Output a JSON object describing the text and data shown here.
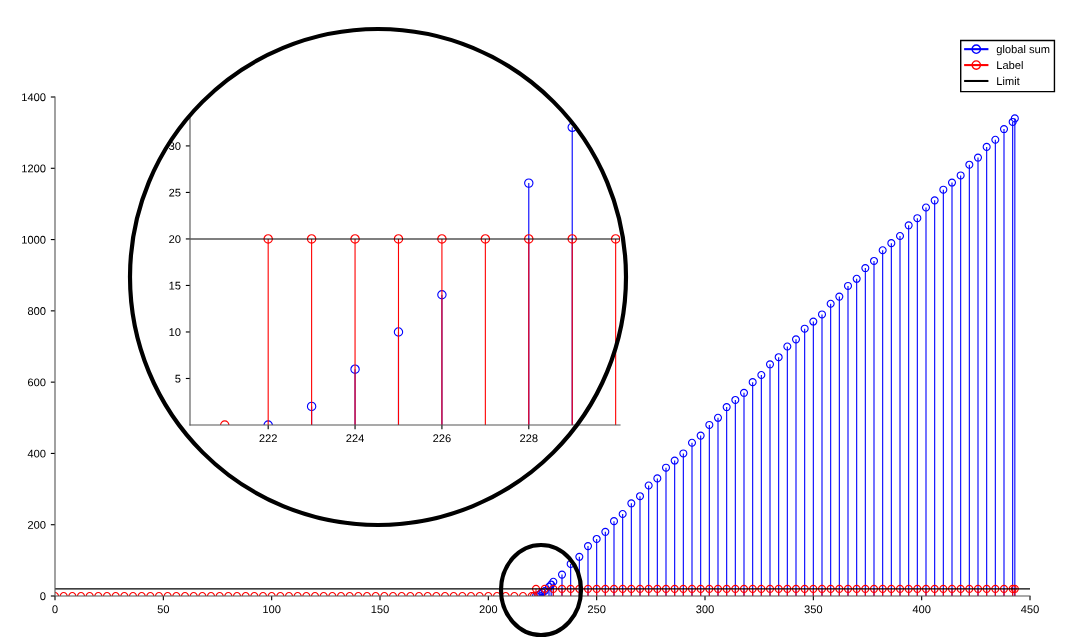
{
  "chart_data": [
    {
      "type": "lollipop",
      "xlim": [
        0,
        450
      ],
      "xticks": [
        0,
        50,
        100,
        150,
        200,
        250,
        300,
        350,
        400,
        450
      ],
      "ylim": [
        0,
        1400
      ],
      "yticks": [
        0,
        200,
        400,
        600,
        800,
        1000,
        1200,
        1400
      ],
      "grid": false,
      "legend": "top right",
      "marker": "circle",
      "series": [
        {
          "name": "global sum",
          "color": "#0000ff",
          "x": [
            222,
            223,
            224,
            225,
            226,
            228,
            229,
            230,
            234,
            238,
            242,
            246,
            250,
            254,
            258,
            262,
            266,
            270,
            274,
            278,
            282,
            286,
            290,
            294,
            298,
            302,
            306,
            310,
            314,
            318,
            322,
            326,
            330,
            334,
            338,
            342,
            346,
            350,
            354,
            358,
            362,
            366,
            370,
            374,
            378,
            382,
            386,
            390,
            394,
            398,
            402,
            406,
            410,
            414,
            418,
            422,
            426,
            430,
            434,
            438,
            442,
            443
          ],
          "values": [
            0,
            2,
            6,
            10,
            14,
            26,
            32,
            40,
            60,
            90,
            110,
            140,
            160,
            180,
            210,
            230,
            260,
            280,
            310,
            330,
            360,
            380,
            400,
            430,
            450,
            480,
            500,
            530,
            550,
            570,
            600,
            620,
            650,
            670,
            700,
            720,
            750,
            770,
            790,
            820,
            840,
            870,
            890,
            920,
            940,
            970,
            990,
            1010,
            1040,
            1060,
            1090,
            1110,
            1140,
            1160,
            1180,
            1210,
            1230,
            1260,
            1280,
            1310,
            1330,
            1340
          ]
        },
        {
          "name": "Label",
          "color": "#ff0000",
          "x": [
            0,
            4,
            8,
            12,
            16,
            20,
            24,
            28,
            32,
            36,
            40,
            44,
            48,
            52,
            56,
            60,
            64,
            68,
            72,
            76,
            80,
            84,
            88,
            92,
            96,
            100,
            104,
            108,
            112,
            116,
            120,
            124,
            128,
            132,
            136,
            140,
            144,
            148,
            152,
            156,
            160,
            164,
            168,
            172,
            176,
            180,
            184,
            188,
            192,
            196,
            200,
            204,
            208,
            212,
            216,
            220,
            221,
            222,
            226,
            230,
            234,
            238,
            242,
            246,
            250,
            254,
            258,
            262,
            266,
            270,
            274,
            278,
            282,
            286,
            290,
            294,
            298,
            302,
            306,
            310,
            314,
            318,
            322,
            326,
            330,
            334,
            338,
            342,
            346,
            350,
            354,
            358,
            362,
            366,
            370,
            374,
            378,
            382,
            386,
            390,
            394,
            398,
            402,
            406,
            410,
            414,
            418,
            422,
            426,
            430,
            434,
            438,
            442,
            443
          ],
          "values": [
            0,
            0,
            0,
            0,
            0,
            0,
            0,
            0,
            0,
            0,
            0,
            0,
            0,
            0,
            0,
            0,
            0,
            0,
            0,
            0,
            0,
            0,
            0,
            0,
            0,
            0,
            0,
            0,
            0,
            0,
            0,
            0,
            0,
            0,
            0,
            0,
            0,
            0,
            0,
            0,
            0,
            0,
            0,
            0,
            0,
            0,
            0,
            0,
            0,
            0,
            0,
            0,
            0,
            0,
            0,
            0,
            0,
            20,
            20,
            20,
            20,
            20,
            20,
            20,
            20,
            20,
            20,
            20,
            20,
            20,
            20,
            20,
            20,
            20,
            20,
            20,
            20,
            20,
            20,
            20,
            20,
            20,
            20,
            20,
            20,
            20,
            20,
            20,
            20,
            20,
            20,
            20,
            20,
            20,
            20,
            20,
            20,
            20,
            20,
            20,
            20,
            20,
            20,
            20,
            20,
            20,
            20,
            20,
            20,
            20,
            20,
            20,
            20,
            20
          ]
        }
      ],
      "ref_lines": [
        {
          "axis": "y",
          "value": 20,
          "label": "Limit",
          "color": "#000000"
        }
      ]
    },
    {
      "type": "lollipop",
      "xlim": [
        220.2,
        230.1
      ],
      "xticks": [
        222,
        224,
        226,
        228
      ],
      "ylim": [
        0,
        33
      ],
      "yticks": [
        5,
        10,
        15,
        20,
        25,
        30
      ],
      "grid": false,
      "marker": "circle",
      "series": [
        {
          "color": "#0000ff",
          "x": [
            222,
            223,
            224,
            225,
            226,
            228,
            229
          ],
          "values": [
            0,
            2,
            6,
            10,
            14,
            26,
            32
          ]
        },
        {
          "color": "#ff0000",
          "x": [
            221,
            222,
            223,
            224,
            225,
            226,
            227,
            228,
            229,
            230
          ],
          "values": [
            0,
            20,
            20,
            20,
            20,
            20,
            20,
            20,
            20,
            20
          ]
        }
      ],
      "ref_lines": [
        {
          "axis": "y",
          "value": 20,
          "color": "#000000"
        }
      ]
    }
  ]
}
